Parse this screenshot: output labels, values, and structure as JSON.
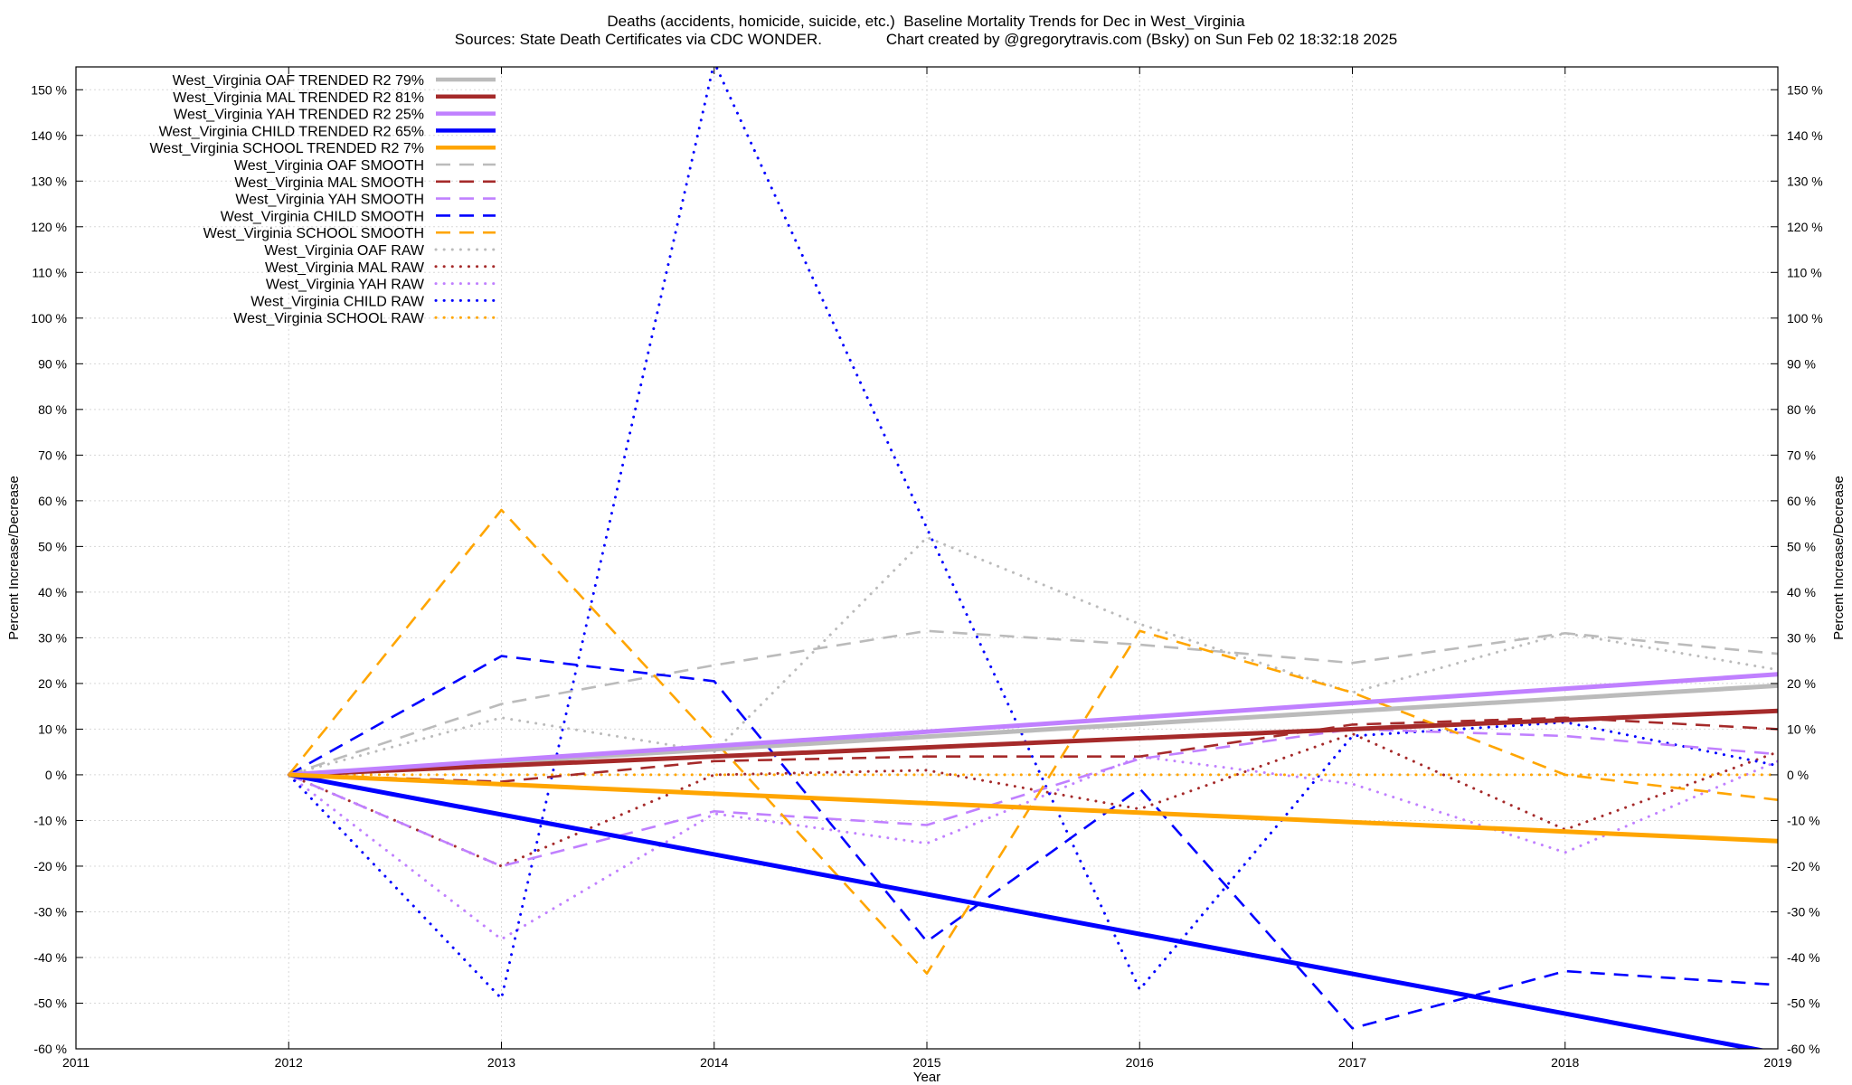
{
  "chart_data": {
    "type": "line",
    "title": "Deaths (accidents, homicide, suicide, etc.)  Baseline Mortality Trends for Dec in West_Virginia",
    "subtitle_sources": "Sources: State Death Certificates via CDC WONDER.",
    "subtitle_credit": "Chart created by @gregorytravis.com (Bsky) on Sun Feb 02 18:32:18 2025",
    "xlabel": "Year",
    "ylabel": "Percent Increase/Decrease",
    "y2label": "Percent Increase/Decrease",
    "xlim": [
      2011,
      2019
    ],
    "ylim": [
      -60,
      155
    ],
    "x_ticks": [
      "2011",
      "2012",
      "2013",
      "2014",
      "2015",
      "2016",
      "2017",
      "2018",
      "2019"
    ],
    "y_ticks": [
      "-60 %",
      "-50 %",
      "-40 %",
      "-30 %",
      "-20 %",
      "-10 %",
      "0 %",
      "10 %",
      "20 %",
      "30 %",
      "40 %",
      "50 %",
      "60 %",
      "70 %",
      "80 %",
      "90 %",
      "100 %",
      "110 %",
      "120 %",
      "130 %",
      "140 %",
      "150 %"
    ],
    "grid": true,
    "legend_position": "top-left",
    "series": [
      {
        "name": "West_Virginia OAF TRENDED R2  79%",
        "style": "trend",
        "color": "#bbbbbb",
        "x": [
          2012,
          2019
        ],
        "values": [
          0,
          19.5
        ]
      },
      {
        "name": "West_Virginia MAL TRENDED R2  81%",
        "style": "trend",
        "color": "#a52a2a",
        "x": [
          2012,
          2019
        ],
        "values": [
          0,
          14
        ]
      },
      {
        "name": "West_Virginia YAH TRENDED R2  25%",
        "style": "trend",
        "color": "#c080ff",
        "x": [
          2012,
          2019
        ],
        "values": [
          0,
          22
        ]
      },
      {
        "name": "West_Virginia CHILD TRENDED R2  65%",
        "style": "trend",
        "color": "#0000ff",
        "x": [
          2012,
          2019
        ],
        "values": [
          0,
          -61
        ]
      },
      {
        "name": "West_Virginia SCHOOL TRENDED R2   7%",
        "style": "trend",
        "color": "#ffa500",
        "x": [
          2012,
          2019
        ],
        "values": [
          0,
          -14.5
        ]
      },
      {
        "name": "West_Virginia OAF SMOOTH",
        "style": "smooth",
        "color": "#bbbbbb",
        "x": [
          2012,
          2013,
          2014,
          2015,
          2016,
          2017,
          2018,
          2019
        ],
        "values": [
          0,
          15.5,
          24,
          31.5,
          28.5,
          24.5,
          31,
          26.5
        ]
      },
      {
        "name": "West_Virginia MAL SMOOTH",
        "style": "smooth",
        "color": "#a52a2a",
        "x": [
          2012,
          2013,
          2014,
          2015,
          2016,
          2017,
          2018,
          2019
        ],
        "values": [
          0,
          -1.5,
          3,
          4,
          4,
          11,
          12.5,
          10
        ]
      },
      {
        "name": "West_Virginia YAH SMOOTH",
        "style": "smooth",
        "color": "#c080ff",
        "x": [
          2012,
          2013,
          2014,
          2015,
          2016,
          2017,
          2018,
          2019
        ],
        "values": [
          0,
          -20,
          -8,
          -11,
          3.5,
          10,
          8.5,
          4.5
        ]
      },
      {
        "name": "West_Virginia CHILD SMOOTH",
        "style": "smooth",
        "color": "#0000ff",
        "x": [
          2012,
          2013,
          2014,
          2015,
          2016,
          2017,
          2018,
          2019
        ],
        "values": [
          0,
          26,
          20.5,
          -36.5,
          -3,
          -55.5,
          -43,
          -46
        ]
      },
      {
        "name": "West_Virginia SCHOOL SMOOTH",
        "style": "smooth",
        "color": "#ffa500",
        "x": [
          2012,
          2013,
          2014,
          2015,
          2016,
          2017,
          2018,
          2019
        ],
        "values": [
          0,
          58,
          7.5,
          -43.5,
          31.5,
          18,
          0,
          -5.5
        ]
      },
      {
        "name": "West_Virginia OAF RAW",
        "style": "raw",
        "color": "#bbbbbb",
        "x": [
          2012,
          2013,
          2014,
          2015,
          2016,
          2017,
          2018,
          2019
        ],
        "values": [
          0,
          12.5,
          5,
          52,
          33,
          18,
          31,
          23
        ]
      },
      {
        "name": "West_Virginia MAL RAW",
        "style": "raw",
        "color": "#a52a2a",
        "x": [
          2012,
          2013,
          2014,
          2015,
          2016,
          2017,
          2018,
          2019
        ],
        "values": [
          0,
          -20,
          0,
          1,
          -7.5,
          9,
          -12,
          5
        ]
      },
      {
        "name": "West_Virginia YAH RAW",
        "style": "raw",
        "color": "#c080ff",
        "x": [
          2012,
          2013,
          2014,
          2015,
          2016,
          2017,
          2018,
          2019
        ],
        "values": [
          0,
          -36,
          -8.5,
          -15,
          4,
          -2,
          -17,
          3
        ]
      },
      {
        "name": "West_Virginia CHILD RAW",
        "style": "raw",
        "color": "#0000ff",
        "x": [
          2012,
          2013,
          2014,
          2015,
          2016,
          2017,
          2018,
          2019
        ],
        "values": [
          0,
          -49,
          156,
          54,
          -47,
          8.5,
          11.5,
          2
        ]
      },
      {
        "name": "West_Virginia SCHOOL RAW",
        "style": "raw",
        "color": "#ffa500",
        "x": [
          2012,
          2013,
          2014,
          2015,
          2016,
          2017,
          2018,
          2019
        ],
        "values": [
          0,
          0,
          0,
          0,
          0,
          0,
          0,
          0
        ]
      }
    ]
  }
}
